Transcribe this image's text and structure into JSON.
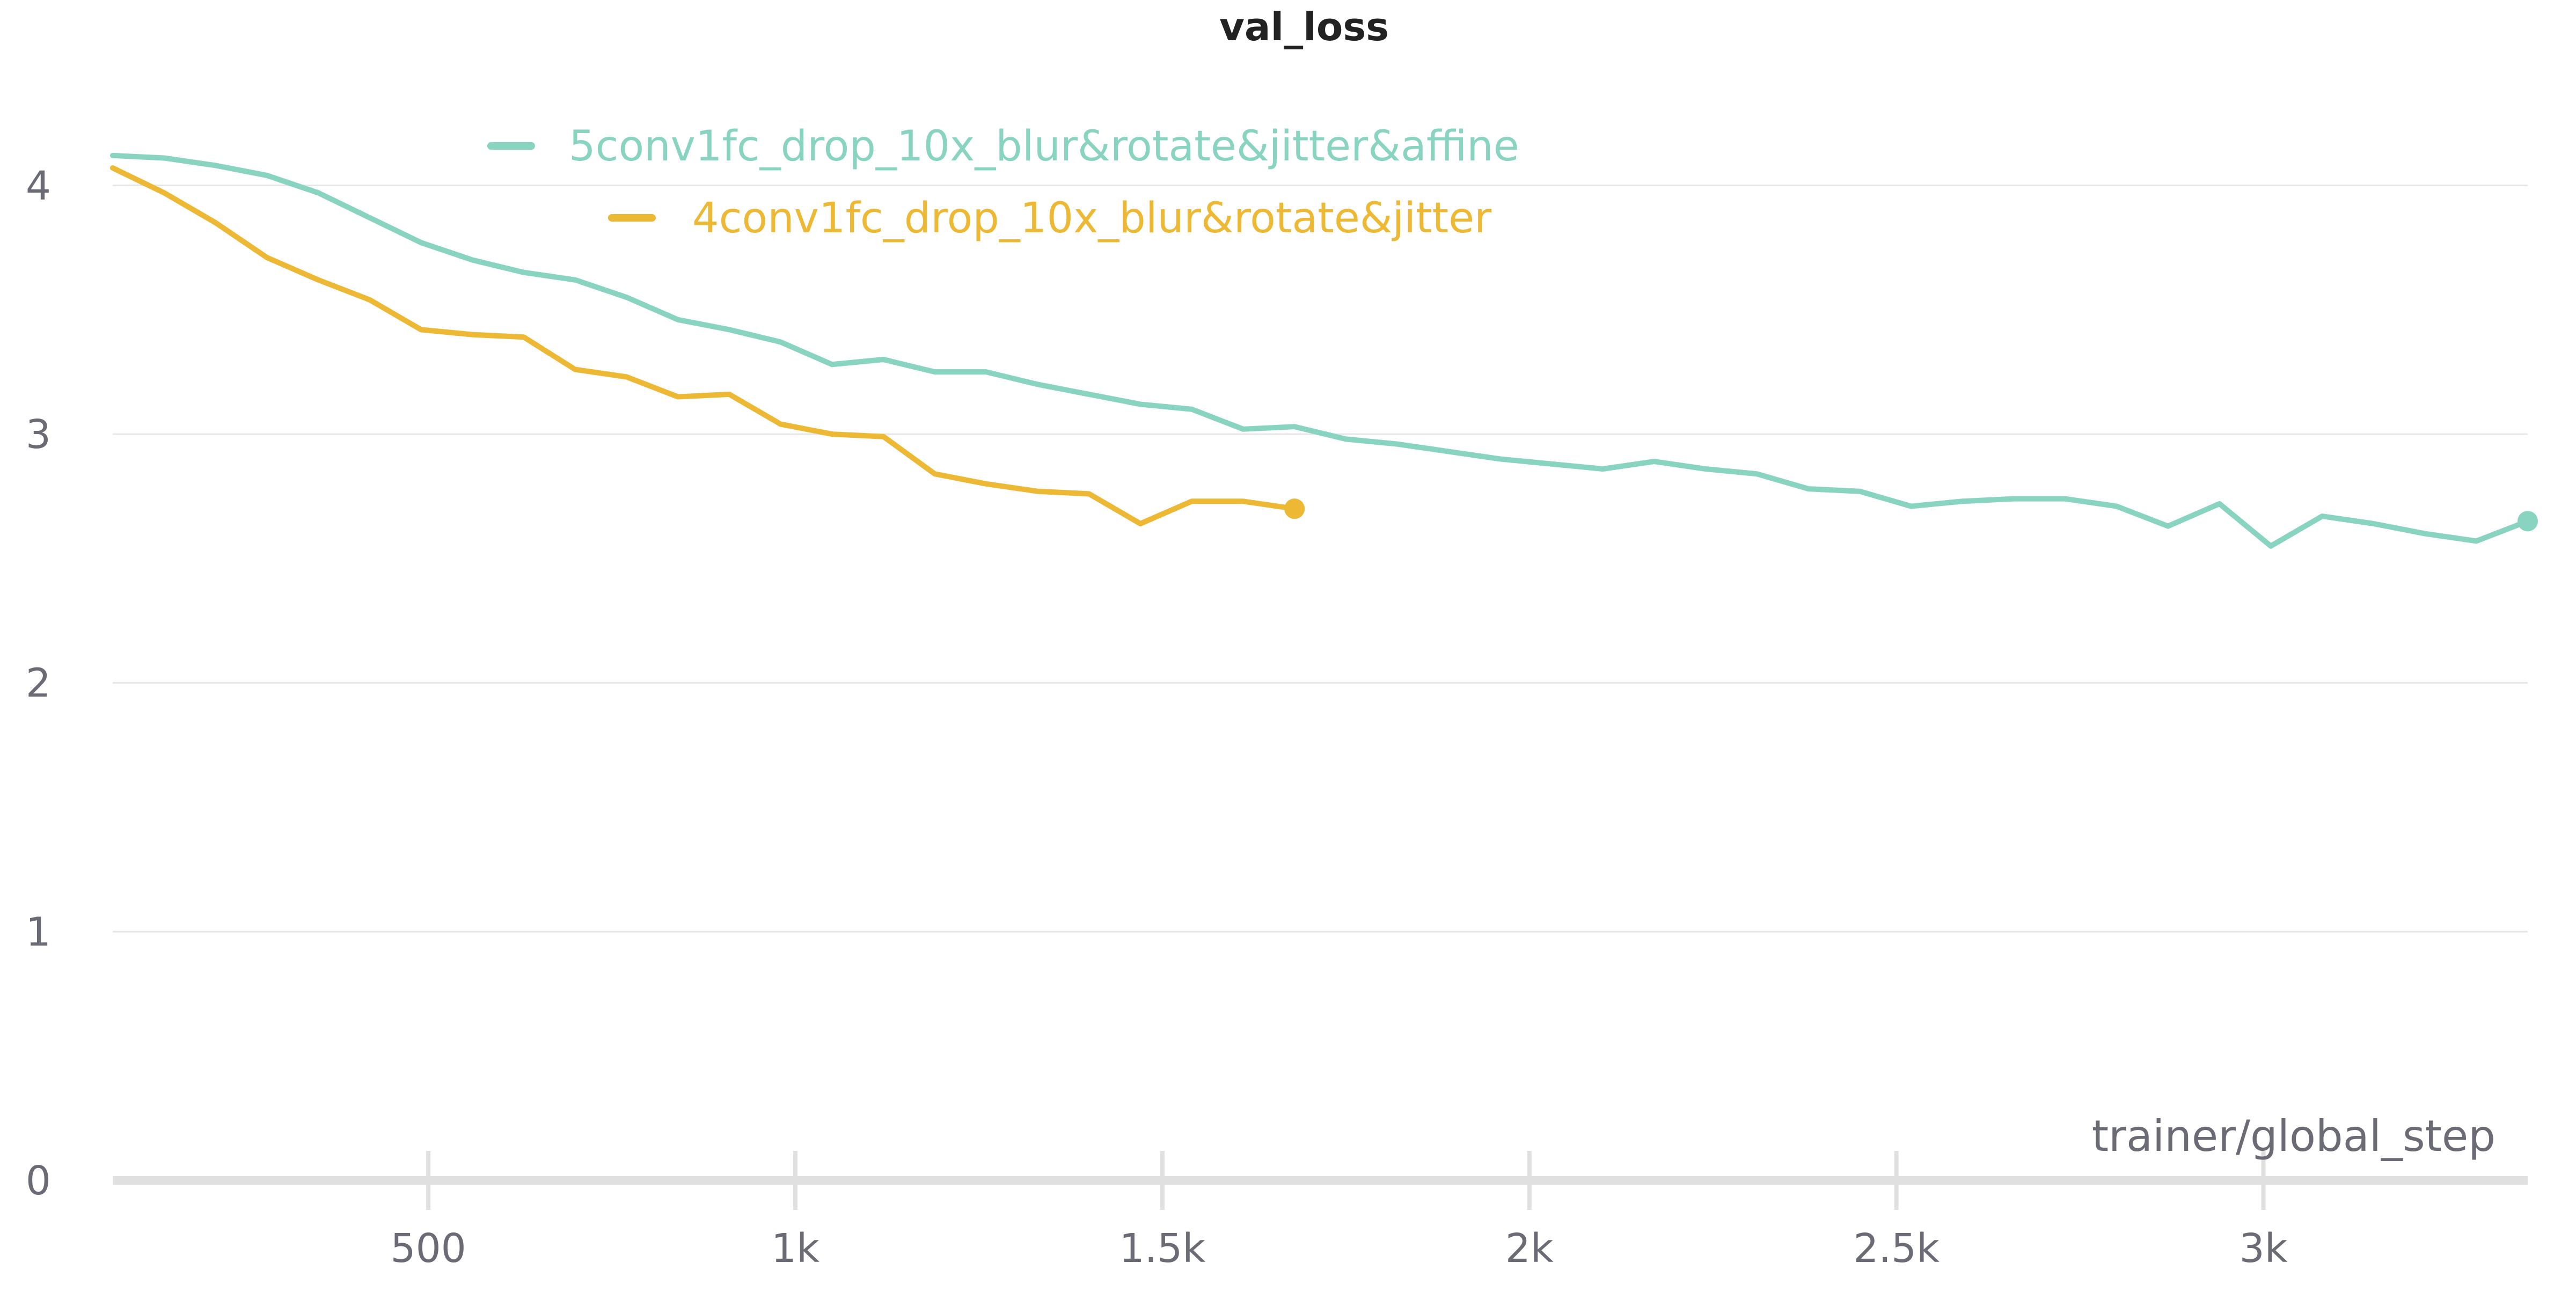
{
  "chart_data": {
    "type": "line",
    "title": "val_loss",
    "xlabel": "trainer/global_step",
    "ylabel": "",
    "xlim": [
      70,
      3360
    ],
    "ylim": [
      0,
      4.4
    ],
    "x_ticks": [
      500,
      1000,
      1500,
      2000,
      2500,
      3000
    ],
    "x_tick_labels": [
      "500",
      "1k",
      "1.5k",
      "2k",
      "2.5k",
      "3k"
    ],
    "y_ticks": [
      0,
      1,
      2,
      3,
      4
    ],
    "y_tick_labels": [
      "0",
      "1",
      "2",
      "3",
      "4"
    ],
    "grid": true,
    "legend_position": "top-left",
    "series": [
      {
        "name": "5conv1fc_drop_10x_blur&rotate&jitter&affine",
        "color": "#89d3c1",
        "x": [
          70,
          140,
          210,
          280,
          350,
          420,
          490,
          560,
          630,
          700,
          770,
          840,
          910,
          980,
          1050,
          1120,
          1190,
          1260,
          1330,
          1400,
          1470,
          1540,
          1610,
          1680,
          1750,
          1820,
          1890,
          1960,
          2030,
          2100,
          2170,
          2240,
          2310,
          2380,
          2450,
          2520,
          2590,
          2660,
          2730,
          2800,
          2870,
          2940,
          3010,
          3080,
          3150,
          3220,
          3290,
          3360
        ],
        "y": [
          4.12,
          4.11,
          4.08,
          4.04,
          3.97,
          3.87,
          3.77,
          3.7,
          3.65,
          3.62,
          3.55,
          3.46,
          3.42,
          3.37,
          3.28,
          3.3,
          3.25,
          3.25,
          3.2,
          3.16,
          3.12,
          3.1,
          3.02,
          3.03,
          2.98,
          2.96,
          2.93,
          2.9,
          2.88,
          2.86,
          2.89,
          2.86,
          2.84,
          2.78,
          2.77,
          2.71,
          2.73,
          2.74,
          2.74,
          2.71,
          2.63,
          2.72,
          2.55,
          2.67,
          2.64,
          2.6,
          2.57,
          2.65
        ]
      },
      {
        "name": "4conv1fc_drop_10x_blur&rotate&jitter",
        "color": "#edb833",
        "x": [
          70,
          140,
          210,
          280,
          350,
          420,
          490,
          560,
          630,
          700,
          770,
          840,
          910,
          980,
          1050,
          1120,
          1190,
          1260,
          1330,
          1400,
          1470,
          1540,
          1610,
          1680
        ],
        "y": [
          4.07,
          3.97,
          3.85,
          3.71,
          3.62,
          3.54,
          3.42,
          3.4,
          3.39,
          3.26,
          3.23,
          3.15,
          3.16,
          3.04,
          3.0,
          2.99,
          2.84,
          2.8,
          2.77,
          2.76,
          2.64,
          2.73,
          2.73,
          2.7
        ]
      }
    ]
  }
}
